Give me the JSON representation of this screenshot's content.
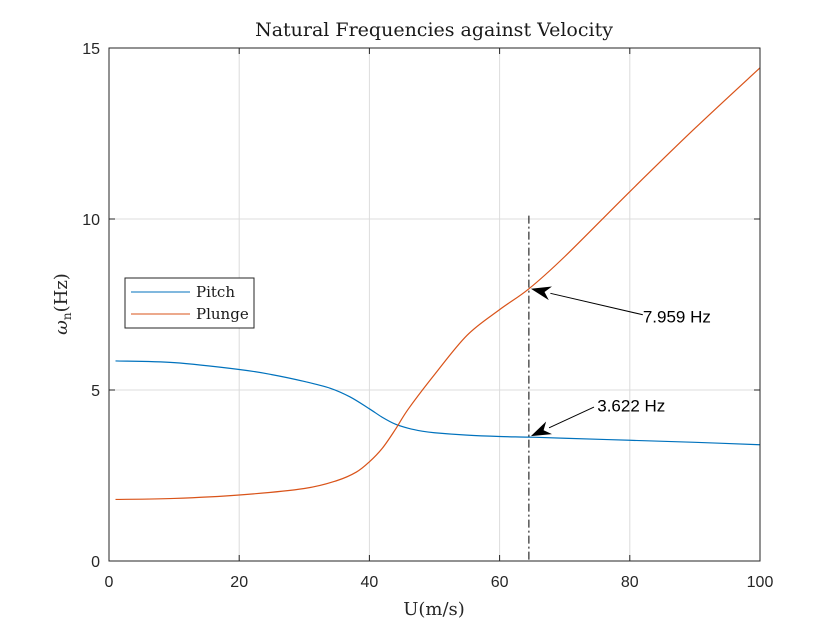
{
  "chart_data": {
    "type": "line",
    "title": "Natural Frequencies against Velocity",
    "xlabel": "U(m/s)",
    "ylabel": "ωn(Hz)",
    "ylabel_main": "ω",
    "ylabel_sub": "n",
    "ylabel_unit": "(Hz)",
    "xlim": [
      0,
      100
    ],
    "ylim": [
      0,
      15
    ],
    "xticks": [
      0,
      20,
      40,
      60,
      80,
      100
    ],
    "yticks": [
      0,
      5,
      10,
      15
    ],
    "xtick_labels": [
      "0",
      "20",
      "40",
      "60",
      "80",
      "100"
    ],
    "ytick_labels": [
      "0",
      "5",
      "10",
      "15"
    ],
    "grid": true,
    "legend_position": "left",
    "series": [
      {
        "name": "Pitch",
        "color": "#0072BD",
        "x": [
          1,
          10,
          20,
          25,
          30,
          34,
          37,
          40,
          42,
          44,
          46,
          48,
          50,
          55,
          60,
          64.5,
          70,
          80,
          90,
          100
        ],
        "y": [
          5.85,
          5.8,
          5.6,
          5.45,
          5.25,
          5.05,
          4.8,
          4.45,
          4.2,
          4.0,
          3.88,
          3.8,
          3.75,
          3.68,
          3.64,
          3.622,
          3.59,
          3.53,
          3.47,
          3.4
        ]
      },
      {
        "name": "Plunge",
        "color": "#D95319",
        "x": [
          1,
          10,
          20,
          30,
          35,
          38,
          40,
          42,
          44,
          46,
          50,
          55,
          60,
          64.5,
          70,
          80,
          90,
          100
        ],
        "y": [
          1.8,
          1.83,
          1.93,
          2.12,
          2.35,
          2.6,
          2.9,
          3.3,
          3.85,
          4.45,
          5.45,
          6.6,
          7.35,
          7.959,
          8.9,
          10.8,
          12.65,
          14.42
        ]
      }
    ],
    "vline": {
      "x": 64.5,
      "y_top": 10.1,
      "style": "dash-dot",
      "color": "#000000"
    },
    "annotations": [
      {
        "text": "7.959 Hz",
        "point": [
          64.5,
          7.959
        ],
        "tail": [
          82,
          7.2
        ],
        "text_pos": [
          82,
          7.15
        ]
      },
      {
        "text": "3.622 Hz",
        "point": [
          64.5,
          3.65
        ],
        "tail": [
          74.5,
          4.5
        ],
        "text_pos": [
          75,
          4.55
        ]
      }
    ]
  }
}
